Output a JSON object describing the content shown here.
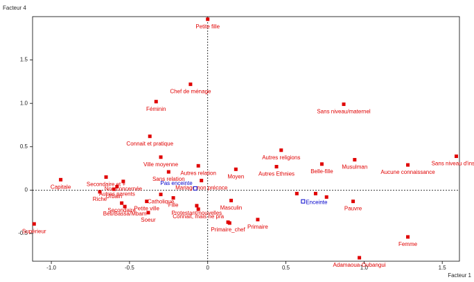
{
  "chart_data": {
    "type": "scatter",
    "x_label": "Facteur 1",
    "y_label": "Facteur 4",
    "xlim": [
      -1.12,
      1.61
    ],
    "ylim": [
      -0.82,
      2.0
    ],
    "xticks": [
      {
        "value": -1.0,
        "label": "-1.0"
      },
      -0.5,
      0,
      0.5,
      {
        "value": 1.0,
        "label": "1.0"
      },
      1.5
    ],
    "yticks": [
      -0.5,
      0,
      0.5,
      {
        "value": 1.0,
        "label": "1.0"
      },
      1.5
    ],
    "series": [
      {
        "color": "#e00000",
        "marker": "filled-square",
        "x": [
          0.0,
          -0.11,
          -0.33,
          -0.37,
          -0.3,
          -0.25,
          -0.06,
          0.18,
          -0.04,
          0.47,
          0.44,
          0.87,
          0.73,
          0.94,
          1.59,
          1.28,
          -0.94,
          -0.65,
          -0.54,
          -0.58,
          -0.6,
          -0.69,
          -0.3,
          -0.55,
          -0.53,
          -0.39,
          -0.22,
          -0.38,
          -0.07,
          -0.06,
          0.15,
          0.13,
          0.14,
          0.32,
          0.57,
          0.69,
          0.76,
          0.93,
          1.28,
          0.97,
          -1.11
        ],
        "y": [
          1.97,
          1.22,
          1.02,
          0.62,
          0.38,
          0.21,
          0.28,
          0.24,
          0.11,
          0.46,
          0.27,
          0.99,
          0.3,
          0.35,
          0.39,
          0.29,
          0.12,
          0.15,
          0.1,
          0.04,
          0.01,
          -0.02,
          -0.05,
          -0.15,
          -0.19,
          -0.13,
          -0.09,
          -0.26,
          -0.18,
          -0.22,
          -0.12,
          -0.37,
          -0.38,
          -0.34,
          -0.04,
          -0.04,
          -0.08,
          -0.13,
          -0.54,
          -0.78,
          -0.39
        ],
        "labels": [
          "Petite fille",
          "Chef de ménage",
          "Féminin",
          "Connait et pratique",
          "Ville moyenne",
          "Sans relation",
          "Autres relation",
          "Moyen",
          "Mariage non précoce",
          "Autres religions",
          "Autres Ethnies",
          "Sans niveau/maternel",
          "Belle-fille",
          "Musulman",
          "Sans niveau d'instru",
          "Aucune connaissance",
          "Capitale",
          "Secondaire et +",
          "Non concernée",
          "Autres parents",
          "Urbain",
          "Riche",
          "Catholique",
          "Secondaire",
          "Beti/Bassa/Mbam",
          "Petite ville",
          "Fille",
          "Soeur",
          "Protestant/nouvelles",
          "Connait, mais ne pra",
          "Masculin",
          "Primaire_chef",
          null,
          "Primaire",
          null,
          null,
          null,
          "Pauvre",
          "Femme",
          "Adamaoua-Oubangui",
          "Supérieur"
        ]
      },
      {
        "color": "#0000cc",
        "marker": "open-square",
        "x": [
          -0.08,
          0.61
        ],
        "y": [
          0.02,
          -0.13
        ],
        "labels": [
          "Pas enceinte",
          "Enceinte"
        ]
      }
    ]
  }
}
